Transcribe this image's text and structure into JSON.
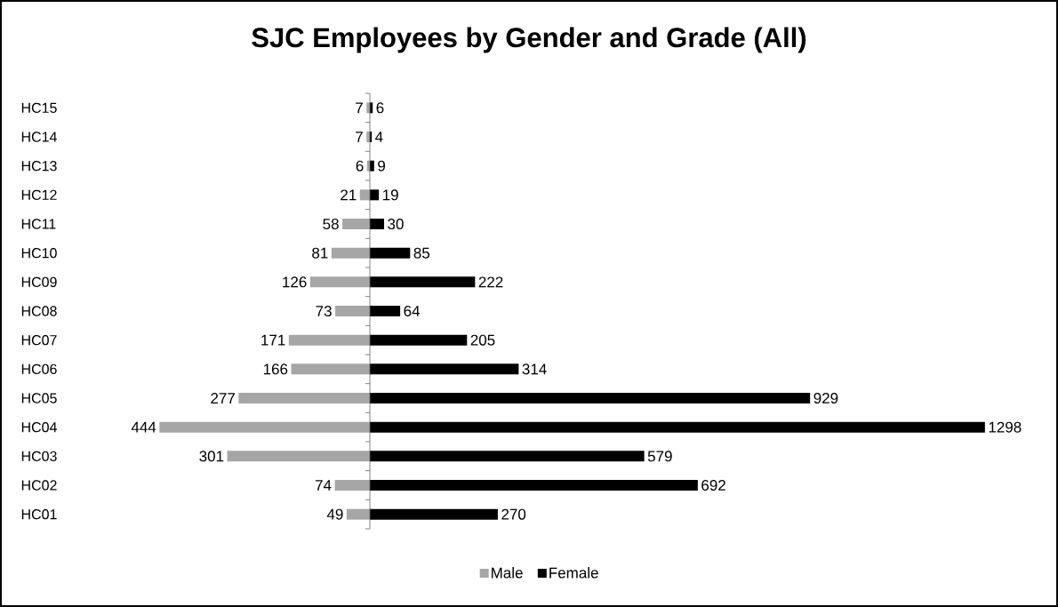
{
  "chart_data": [
    {
      "type": "bar",
      "orientation": "horizontal",
      "title": "SJC Employees by Gender and Grade (All)",
      "categories": [
        "HC15",
        "HC14",
        "HC13",
        "HC12",
        "HC11",
        "HC10",
        "HC09",
        "HC08",
        "HC07",
        "HC06",
        "HC05",
        "HC04",
        "HC03",
        "HC02",
        "HC01"
      ],
      "series": [
        {
          "name": "Male",
          "color": "#a6a6a6",
          "values": [
            7,
            7,
            6,
            21,
            58,
            81,
            126,
            73,
            171,
            166,
            277,
            444,
            301,
            74,
            49
          ]
        }
      ],
      "data_labels": true,
      "xlim": [
        444,
        0
      ],
      "tick_labels": "y",
      "legend": "bottom"
    },
    {
      "type": "bar",
      "orientation": "horizontal",
      "categories": [
        null,
        null,
        null,
        null,
        null,
        null,
        null,
        null,
        null,
        null,
        null,
        null,
        null,
        null,
        null
      ],
      "series": [
        {
          "name": "Female",
          "color": "#000000",
          "values": [
            6,
            4,
            9,
            19,
            30,
            85,
            222,
            64,
            205,
            314,
            929,
            1298,
            579,
            692,
            270
          ]
        }
      ],
      "data_labels": true,
      "xlim": [
        0,
        1298
      ],
      "tick_labels": false,
      "legend": "bottom"
    }
  ]
}
